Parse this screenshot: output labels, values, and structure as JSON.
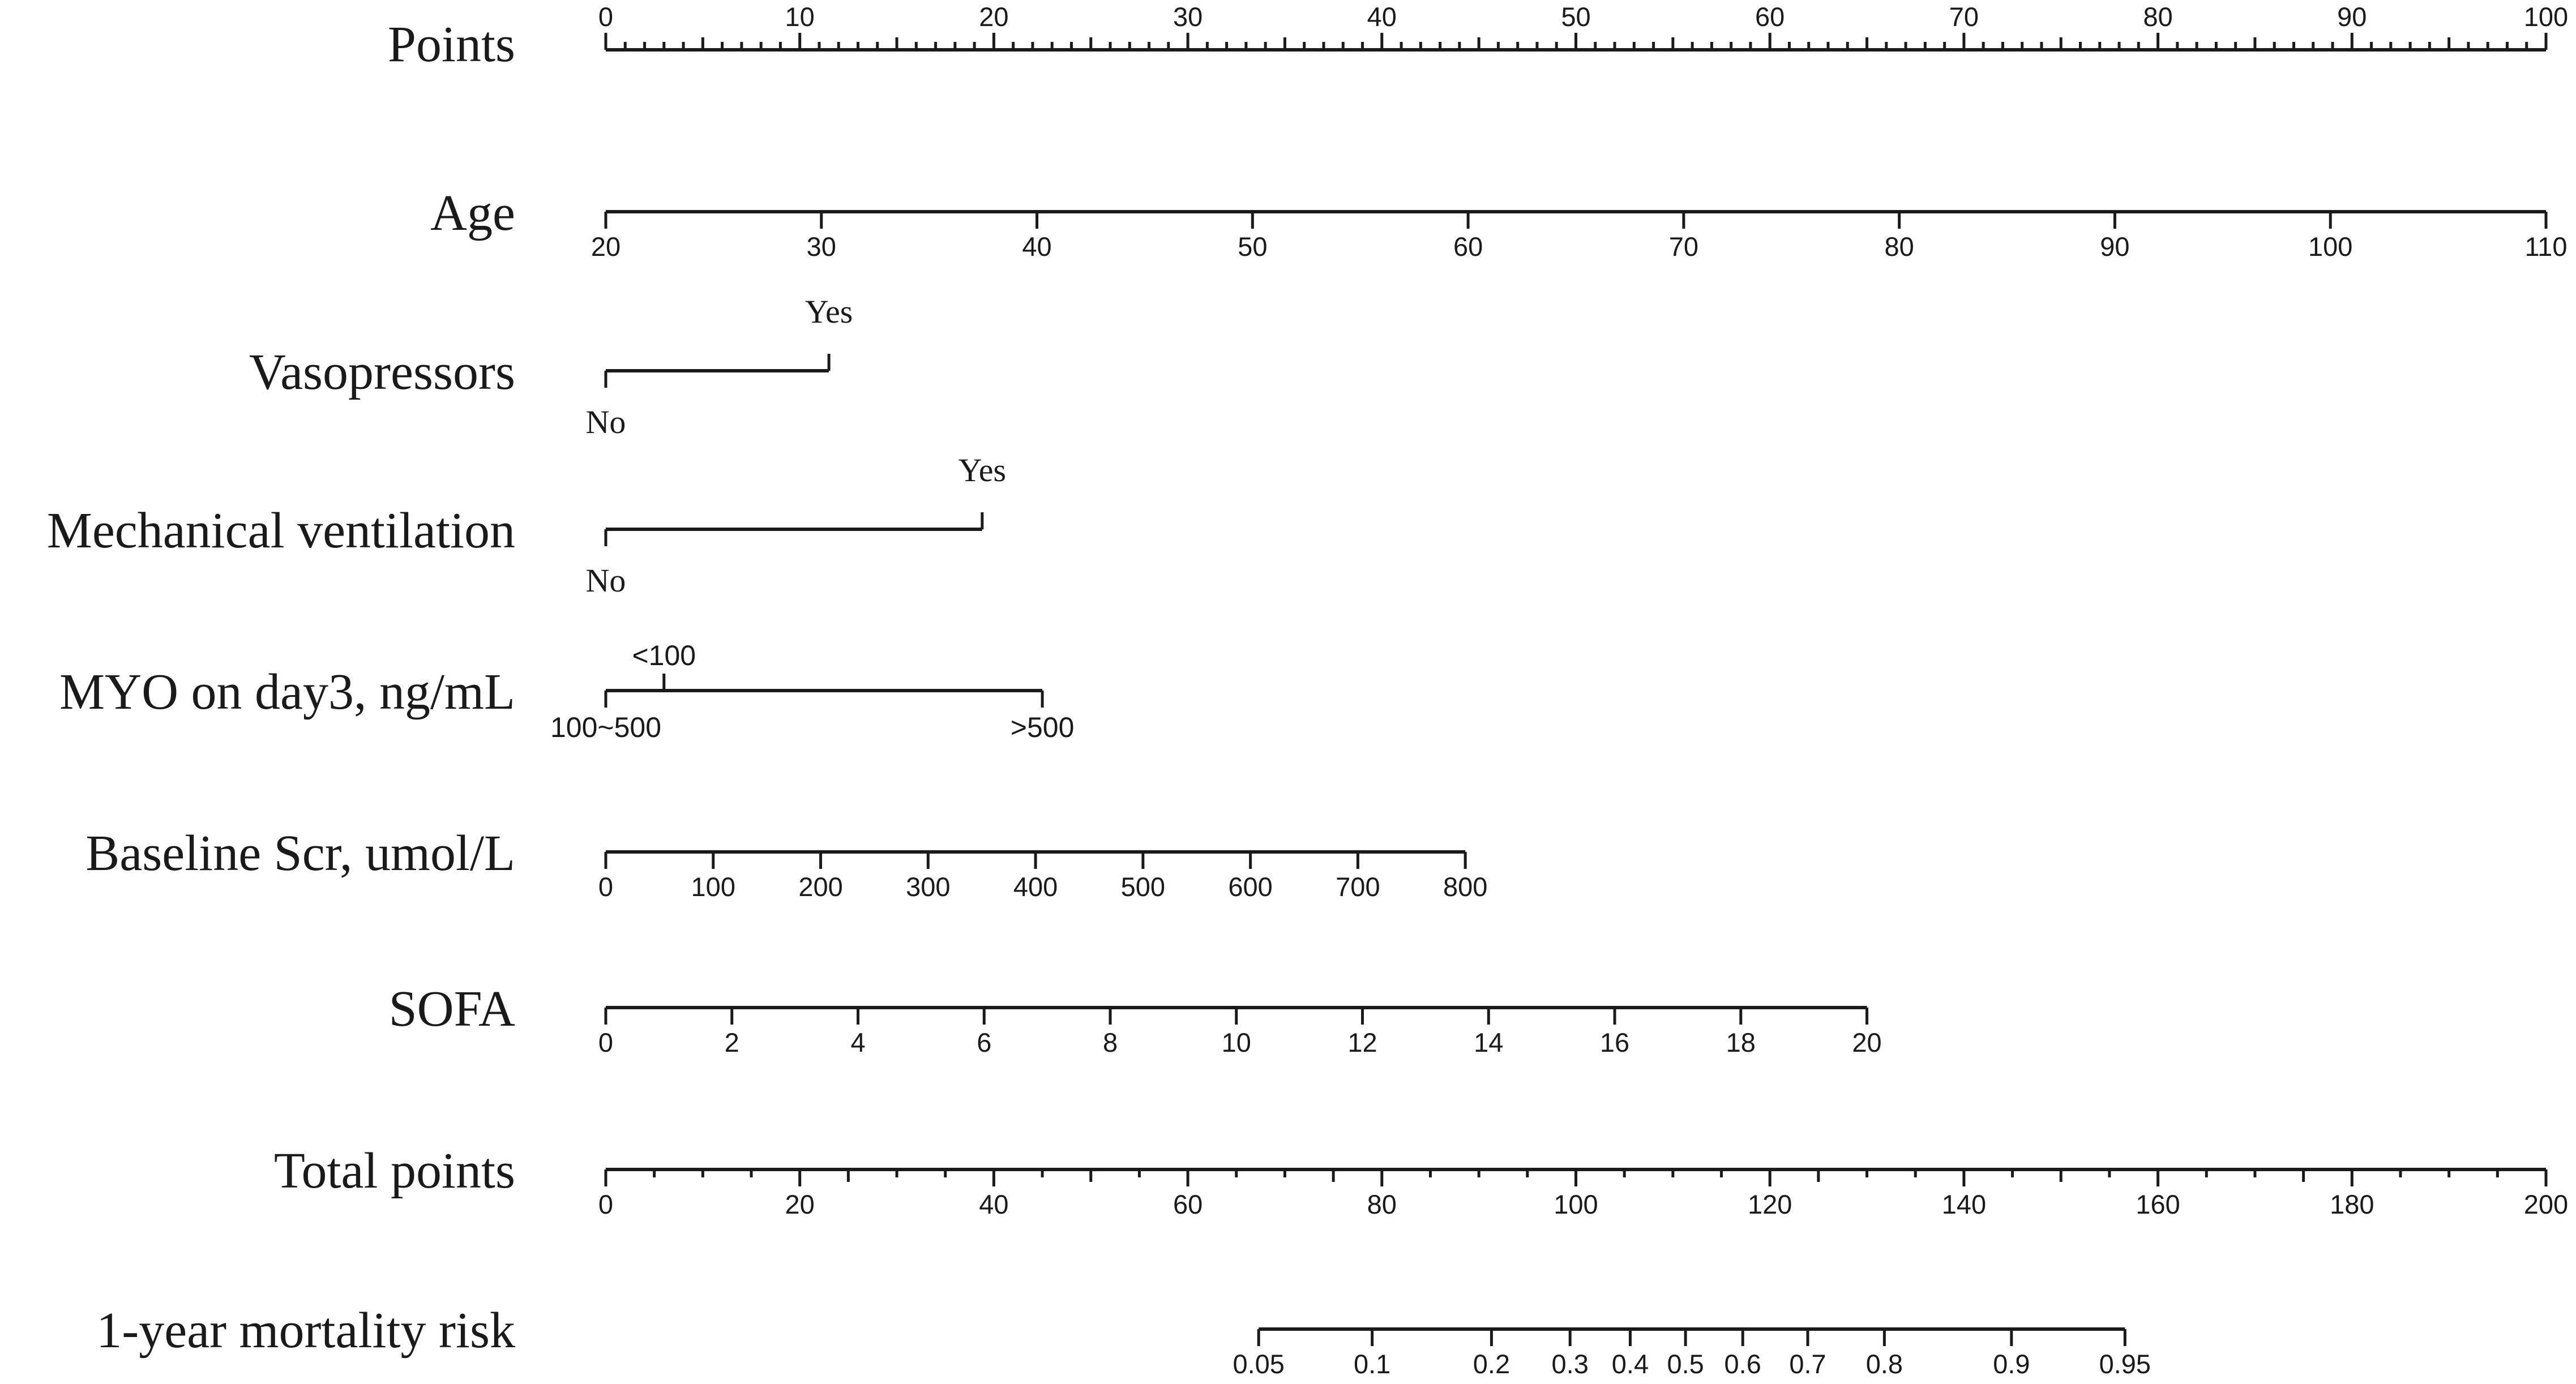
{
  "chart_data": {
    "type": "nomogram",
    "rows": [
      {
        "label": "Points",
        "kind": "points",
        "ticks": [
          0,
          10,
          20,
          30,
          40,
          50,
          60,
          70,
          80,
          90,
          100
        ],
        "minor_step": 1,
        "labels_above": true
      },
      {
        "label": "Age",
        "kind": "continuous",
        "ticks": [
          20,
          30,
          40,
          50,
          60,
          70,
          80,
          90,
          100,
          110
        ],
        "points_at_min": 0,
        "points_at_max": 100
      },
      {
        "label": "Vasopressors",
        "kind": "categorical",
        "categories": [
          {
            "name": "No",
            "points": 0,
            "position": "below"
          },
          {
            "name": "Yes",
            "points": 11.5,
            "position": "above"
          }
        ]
      },
      {
        "label": "Mechanical ventilation",
        "kind": "categorical",
        "categories": [
          {
            "name": "No",
            "points": 0,
            "position": "below"
          },
          {
            "name": "Yes",
            "points": 19.4,
            "position": "above"
          }
        ]
      },
      {
        "label": "MYO on day3, ng/mL",
        "kind": "categorical",
        "categories": [
          {
            "name": "100~500",
            "points": 0,
            "position": "below"
          },
          {
            "name": "<100",
            "points": 3.0,
            "position": "above"
          },
          {
            "name": ">500",
            "points": 22.5,
            "position": "below"
          }
        ]
      },
      {
        "label": "Baseline Scr, umol/L",
        "kind": "continuous",
        "ticks": [
          0,
          100,
          200,
          300,
          400,
          500,
          600,
          700,
          800
        ],
        "points_at_min": 0,
        "points_at_max": 44.3
      },
      {
        "label": "SOFA",
        "kind": "continuous",
        "ticks": [
          0,
          2,
          4,
          6,
          8,
          10,
          12,
          14,
          16,
          18,
          20
        ],
        "points_at_min": 0,
        "points_at_max": 65
      },
      {
        "label": "Total points",
        "kind": "points",
        "ticks": [
          0,
          20,
          40,
          60,
          80,
          100,
          120,
          140,
          160,
          180,
          200
        ],
        "minor_step": 5,
        "scale_max": 200
      },
      {
        "label": "1-year mortality risk",
        "kind": "risk",
        "ticks": [
          {
            "label": "0.05",
            "total": 67.3
          },
          {
            "label": "0.1",
            "total": 79.0
          },
          {
            "label": "0.2",
            "total": 91.3
          },
          {
            "label": "0.3",
            "total": 99.4
          },
          {
            "label": "0.4",
            "total": 105.6
          },
          {
            "label": "0.5",
            "total": 111.3
          },
          {
            "label": "0.6",
            "total": 117.2
          },
          {
            "label": "0.7",
            "total": 123.9
          },
          {
            "label": "0.8",
            "total": 131.8
          },
          {
            "label": "0.9",
            "total": 144.9
          },
          {
            "label": "0.95",
            "total": 156.6
          }
        ]
      }
    ]
  }
}
